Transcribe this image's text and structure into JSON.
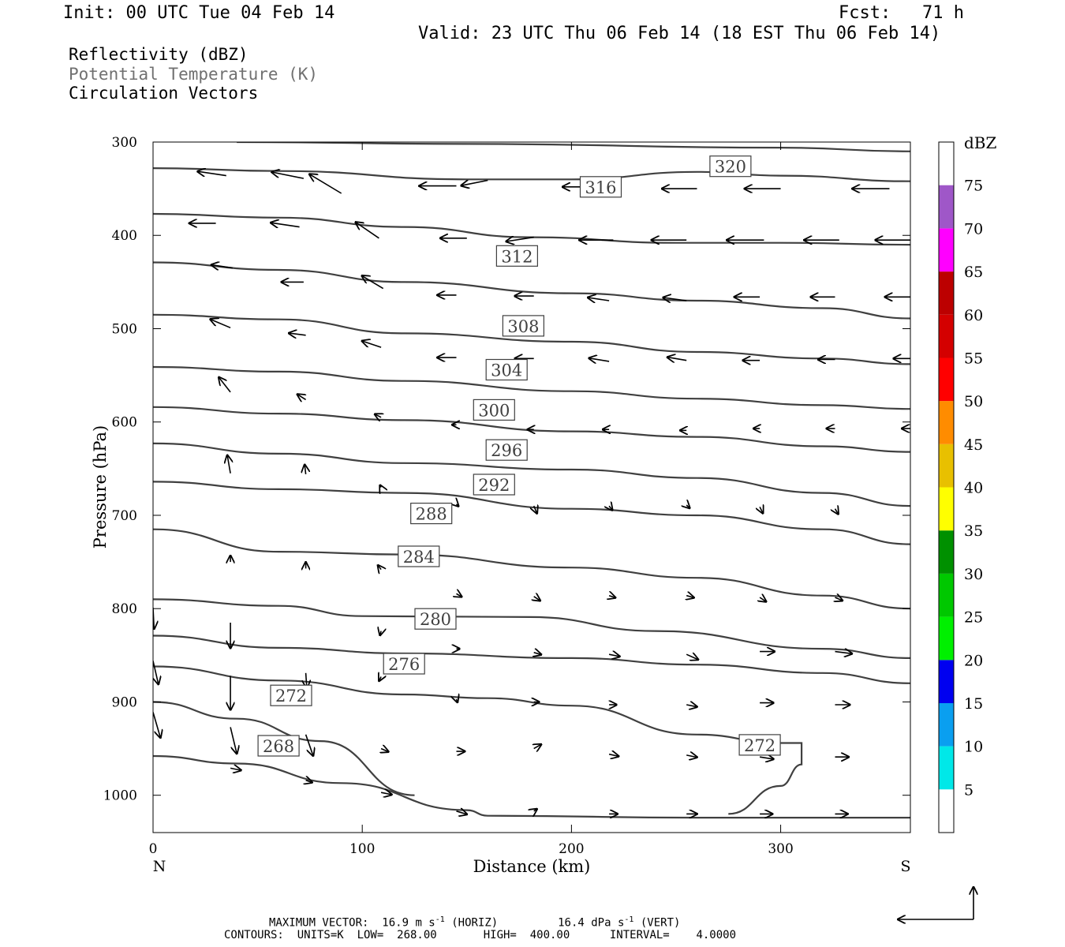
{
  "header": {
    "init": "Init: 00 UTC Tue 04 Feb 14",
    "fcst": "Fcst:   71 h",
    "valid": "Valid: 23 UTC Thu 06 Feb 14 (18 EST Thu 06 Feb 14)"
  },
  "fields": {
    "field1": "Reflectivity (dBZ)",
    "field2": "Potential Temperature (K)",
    "field3": "Circulation Vectors"
  },
  "footer": {
    "max_vector_label": "MAXIMUM VECTOR:",
    "max_horiz": "16.9 m s",
    "horiz_tag": "(HORIZ)",
    "max_vert": "16.4 dPa s",
    "vert_tag": "(VERT)",
    "exp": "-1",
    "contours_line": "CONTOURS:  UNITS=K  LOW=  268.00       HIGH=  400.00      INTERVAL=    4.0000"
  },
  "colors": {
    "contour": "#404040",
    "label_box": "#404040",
    "vector": "#000000",
    "colorbar": [
      "#00e8e8",
      "#0a9ff0",
      "#0000f0",
      "#00f000",
      "#00c800",
      "#009000",
      "#ffff00",
      "#e8c000",
      "#ff8c00",
      "#ff0000",
      "#d40000",
      "#bc0000",
      "#ff00ff",
      "#9f57c8"
    ]
  },
  "chart_data": {
    "type": "cross-section",
    "xlabel": "Distance (km)",
    "ylabel": "Pressure (hPa)",
    "xlim": [
      0,
      362
    ],
    "ylim": [
      1040,
      300
    ],
    "x_ticks": [
      0,
      100,
      200,
      300
    ],
    "y_ticks": [
      300,
      400,
      500,
      600,
      700,
      800,
      900,
      1000
    ],
    "x_end_labels": {
      "left": "N",
      "right": "S"
    },
    "colorbar": {
      "title": "dBZ",
      "levels": [
        5,
        10,
        15,
        20,
        25,
        30,
        35,
        40,
        45,
        50,
        55,
        60,
        65,
        70,
        75
      ]
    },
    "contour_labels": [
      {
        "value": "320",
        "x": 276,
        "p": 326
      },
      {
        "value": "316",
        "x": 214,
        "p": 348
      },
      {
        "value": "312",
        "x": 174,
        "p": 422
      },
      {
        "value": "308",
        "x": 177,
        "p": 497
      },
      {
        "value": "304",
        "x": 169,
        "p": 544
      },
      {
        "value": "300",
        "x": 163,
        "p": 587
      },
      {
        "value": "296",
        "x": 169,
        "p": 630
      },
      {
        "value": "292",
        "x": 163,
        "p": 667
      },
      {
        "value": "288",
        "x": 133,
        "p": 698
      },
      {
        "value": "284",
        "x": 127,
        "p": 744
      },
      {
        "value": "280",
        "x": 135,
        "p": 811
      },
      {
        "value": "276",
        "x": 120,
        "p": 859
      },
      {
        "value": "272",
        "x": 66,
        "p": 893
      },
      {
        "value": "268",
        "x": 60,
        "p": 947
      },
      {
        "value": "272",
        "x": 290,
        "p": 946
      }
    ],
    "isentropes": [
      {
        "value": 324,
        "points": [
          [
            40,
            300
          ],
          [
            150,
            302
          ],
          [
            300,
            306
          ],
          [
            362,
            310
          ]
        ]
      },
      {
        "value": 320,
        "points": [
          [
            0,
            328
          ],
          [
            60,
            331
          ],
          [
            150,
            340
          ],
          [
            200,
            340
          ],
          [
            260,
            332
          ],
          [
            300,
            336
          ],
          [
            362,
            342
          ]
        ]
      },
      {
        "value": 316,
        "points": [
          [
            0,
            377
          ],
          [
            60,
            381
          ],
          [
            120,
            391
          ],
          [
            180,
            402
          ],
          [
            250,
            408
          ],
          [
            300,
            408
          ],
          [
            362,
            410
          ]
        ]
      },
      {
        "value": 312,
        "points": [
          [
            0,
            429
          ],
          [
            60,
            437
          ],
          [
            120,
            450
          ],
          [
            200,
            462
          ],
          [
            260,
            470
          ],
          [
            320,
            478
          ],
          [
            362,
            489
          ]
        ]
      },
      {
        "value": 308,
        "points": [
          [
            0,
            485
          ],
          [
            60,
            490
          ],
          [
            120,
            505
          ],
          [
            200,
            514
          ],
          [
            260,
            525
          ],
          [
            320,
            532
          ],
          [
            362,
            538
          ]
        ]
      },
      {
        "value": 304,
        "points": [
          [
            0,
            541
          ],
          [
            60,
            546
          ],
          [
            120,
            556
          ],
          [
            200,
            567
          ],
          [
            260,
            575
          ],
          [
            320,
            582
          ],
          [
            362,
            586
          ]
        ]
      },
      {
        "value": 300,
        "points": [
          [
            0,
            584
          ],
          [
            60,
            591
          ],
          [
            120,
            598
          ],
          [
            200,
            610
          ],
          [
            260,
            616
          ],
          [
            320,
            626
          ],
          [
            362,
            632
          ]
        ]
      },
      {
        "value": 296,
        "points": [
          [
            0,
            623
          ],
          [
            60,
            634
          ],
          [
            120,
            644
          ],
          [
            200,
            651
          ],
          [
            260,
            660
          ],
          [
            320,
            676
          ],
          [
            362,
            690
          ]
        ]
      },
      {
        "value": 292,
        "points": [
          [
            0,
            664
          ],
          [
            60,
            672
          ],
          [
            120,
            676
          ],
          [
            200,
            693
          ],
          [
            260,
            700
          ],
          [
            320,
            715
          ],
          [
            362,
            731
          ]
        ]
      },
      {
        "value": 288,
        "points": [
          [
            0,
            715
          ],
          [
            60,
            739
          ],
          [
            120,
            742
          ],
          [
            200,
            756
          ],
          [
            260,
            767
          ],
          [
            320,
            786
          ],
          [
            362,
            800
          ]
        ]
      },
      {
        "value": 284,
        "points": [
          [
            0,
            790
          ],
          [
            60,
            797
          ],
          [
            100,
            808
          ],
          [
            180,
            809
          ],
          [
            240,
            824
          ],
          [
            320,
            843
          ],
          [
            362,
            853
          ]
        ]
      },
      {
        "value": 280,
        "points": [
          [
            0,
            829
          ],
          [
            60,
            842
          ],
          [
            120,
            848
          ],
          [
            200,
            853
          ],
          [
            260,
            860
          ],
          [
            320,
            869
          ],
          [
            362,
            880
          ]
        ]
      },
      {
        "value": 276,
        "points": [
          [
            0,
            862
          ],
          [
            60,
            877
          ],
          [
            120,
            892
          ],
          [
            160,
            896
          ],
          [
            200,
            904
          ],
          [
            260,
            935
          ],
          [
            300,
            944
          ],
          [
            310,
            944
          ],
          [
            310,
            967
          ],
          [
            300,
            990
          ],
          [
            275,
            1020
          ]
        ]
      },
      {
        "value": 272,
        "points": [
          [
            0,
            900
          ],
          [
            40,
            918
          ],
          [
            80,
            942
          ],
          [
            125,
            1000
          ]
        ]
      },
      {
        "value": 268,
        "points": [
          [
            0,
            958
          ],
          [
            40,
            966
          ],
          [
            90,
            987
          ],
          [
            150,
            1016
          ],
          [
            160,
            1022
          ],
          [
            260,
            1024
          ],
          [
            362,
            1024
          ]
        ]
      }
    ],
    "vectors": [
      {
        "x": 35,
        "p": 336,
        "u": -27,
        "w": 4
      },
      {
        "x": 72,
        "p": 339,
        "u": -30,
        "w": 6
      },
      {
        "x": 90,
        "p": 355,
        "u": -30,
        "w": 18
      },
      {
        "x": 145,
        "p": 347,
        "u": -35,
        "w": 0
      },
      {
        "x": 160,
        "p": 341,
        "u": -25,
        "w": -5
      },
      {
        "x": 215,
        "p": 348,
        "u": -38,
        "w": 0
      },
      {
        "x": 260,
        "p": 350,
        "u": -33,
        "w": 0
      },
      {
        "x": 300,
        "p": 350,
        "u": -34,
        "w": 0
      },
      {
        "x": 352,
        "p": 350,
        "u": -35,
        "w": 0
      },
      {
        "x": 30,
        "p": 387,
        "u": -25,
        "w": 0
      },
      {
        "x": 70,
        "p": 391,
        "u": -27,
        "w": 4
      },
      {
        "x": 108,
        "p": 403,
        "u": -22,
        "w": 15
      },
      {
        "x": 150,
        "p": 403,
        "u": -25,
        "w": 0
      },
      {
        "x": 182,
        "p": 402,
        "u": -26,
        "w": -4
      },
      {
        "x": 220,
        "p": 405,
        "u": -32,
        "w": 0
      },
      {
        "x": 255,
        "p": 405,
        "u": -33,
        "w": 0
      },
      {
        "x": 292,
        "p": 405,
        "u": -35,
        "w": 0
      },
      {
        "x": 328,
        "p": 405,
        "u": -33,
        "w": 0
      },
      {
        "x": 362,
        "p": 405,
        "u": -33,
        "w": 0
      },
      {
        "x": 38,
        "p": 435,
        "u": -20,
        "w": 3
      },
      {
        "x": 72,
        "p": 450,
        "u": -21,
        "w": 0
      },
      {
        "x": 110,
        "p": 457,
        "u": -20,
        "w": 12
      },
      {
        "x": 145,
        "p": 464,
        "u": -18,
        "w": 0
      },
      {
        "x": 182,
        "p": 465,
        "u": -18,
        "w": 0
      },
      {
        "x": 218,
        "p": 470,
        "u": -20,
        "w": 3
      },
      {
        "x": 255,
        "p": 470,
        "u": -22,
        "w": 3
      },
      {
        "x": 290,
        "p": 466,
        "u": -24,
        "w": 0
      },
      {
        "x": 326,
        "p": 466,
        "u": -23,
        "w": 0
      },
      {
        "x": 362,
        "p": 466,
        "u": -24,
        "w": 0
      },
      {
        "x": 37,
        "p": 499,
        "u": -19,
        "w": 8
      },
      {
        "x": 73,
        "p": 507,
        "u": -16,
        "w": 2
      },
      {
        "x": 109,
        "p": 520,
        "u": -18,
        "w": 6
      },
      {
        "x": 145,
        "p": 531,
        "u": -18,
        "w": 0
      },
      {
        "x": 182,
        "p": 532,
        "u": -18,
        "w": 0
      },
      {
        "x": 218,
        "p": 535,
        "u": -19,
        "w": 3
      },
      {
        "x": 255,
        "p": 534,
        "u": -18,
        "w": 3
      },
      {
        "x": 290,
        "p": 534,
        "u": -16,
        "w": 0
      },
      {
        "x": 326,
        "p": 533,
        "u": -16,
        "w": 0
      },
      {
        "x": 362,
        "p": 532,
        "u": -16,
        "w": 0
      },
      {
        "x": 37,
        "p": 568,
        "u": -11,
        "w": 14
      },
      {
        "x": 73,
        "p": 576,
        "u": -8,
        "w": 5
      },
      {
        "x": 109,
        "p": 595,
        "u": -6,
        "w": 3
      },
      {
        "x": 145,
        "p": 603,
        "u": -4,
        "w": 0
      },
      {
        "x": 182,
        "p": 608,
        "u": -6,
        "w": 0
      },
      {
        "x": 218,
        "p": 608,
        "u": -6,
        "w": 0
      },
      {
        "x": 255,
        "p": 609,
        "u": -6,
        "w": 0
      },
      {
        "x": 290,
        "p": 607,
        "u": -6,
        "w": 0
      },
      {
        "x": 326,
        "p": 607,
        "u": -8,
        "w": 0
      },
      {
        "x": 362,
        "p": 607,
        "u": -8,
        "w": 0
      },
      {
        "x": 37,
        "p": 655,
        "u": -3,
        "w": 17
      },
      {
        "x": 73,
        "p": 656,
        "u": -1,
        "w": 9
      },
      {
        "x": 109,
        "p": 670,
        "u": -1,
        "w": 2
      },
      {
        "x": 145,
        "p": 688,
        "u": 2,
        "w": -2
      },
      {
        "x": 182,
        "p": 690,
        "u": 3,
        "w": -7
      },
      {
        "x": 218,
        "p": 690,
        "u": 3,
        "w": -4
      },
      {
        "x": 255,
        "p": 689,
        "u": 3,
        "w": -3
      },
      {
        "x": 290,
        "p": 691,
        "u": 3,
        "w": -6
      },
      {
        "x": 326,
        "p": 693,
        "u": 3,
        "w": -5
      },
      {
        "x": 37,
        "p": 750,
        "u": 0,
        "w": 6
      },
      {
        "x": 73,
        "p": 757,
        "u": 0,
        "w": 6
      },
      {
        "x": 109,
        "p": 758,
        "u": -3,
        "w": 4
      },
      {
        "x": 145,
        "p": 784,
        "u": 5,
        "w": -3
      },
      {
        "x": 182,
        "p": 787,
        "u": 6,
        "w": -4
      },
      {
        "x": 218,
        "p": 786,
        "u": 6,
        "w": -2
      },
      {
        "x": 255,
        "p": 786,
        "u": 7,
        "w": -2
      },
      {
        "x": 290,
        "p": 788,
        "u": 6,
        "w": -4
      },
      {
        "x": 326,
        "p": 788,
        "u": 7,
        "w": -3
      },
      {
        "x": 0,
        "p": 799,
        "u": 1,
        "w": -20
      },
      {
        "x": 37,
        "p": 815,
        "u": 0,
        "w": -24
      },
      {
        "x": 109,
        "p": 824,
        "u": -1,
        "w": -4
      },
      {
        "x": 145,
        "p": 843,
        "u": 3,
        "w": 0
      },
      {
        "x": 182,
        "p": 847,
        "u": 7,
        "w": -2
      },
      {
        "x": 218,
        "p": 849,
        "u": 10,
        "w": -2
      },
      {
        "x": 255,
        "p": 849,
        "u": 11,
        "w": -5
      },
      {
        "x": 290,
        "p": 846,
        "u": 14,
        "w": 0
      },
      {
        "x": 326,
        "p": 846,
        "u": 16,
        "w": -2
      },
      {
        "x": 0,
        "p": 856,
        "u": 5,
        "w": -22
      },
      {
        "x": 37,
        "p": 872,
        "u": 0,
        "w": -32
      },
      {
        "x": 73,
        "p": 869,
        "u": 1,
        "w": -14
      },
      {
        "x": 109,
        "p": 873,
        "u": -2,
        "w": -4
      },
      {
        "x": 145,
        "p": 897,
        "u": 1,
        "w": -3
      },
      {
        "x": 182,
        "p": 900,
        "u": 5,
        "w": 0
      },
      {
        "x": 218,
        "p": 903,
        "u": 7,
        "w": 0
      },
      {
        "x": 255,
        "p": 903,
        "u": 10,
        "w": -2
      },
      {
        "x": 290,
        "p": 901,
        "u": 13,
        "w": 0
      },
      {
        "x": 326,
        "p": 903,
        "u": 14,
        "w": 0
      },
      {
        "x": 0,
        "p": 911,
        "u": 7,
        "w": -24
      },
      {
        "x": 37,
        "p": 927,
        "u": 6,
        "w": -25
      },
      {
        "x": 73,
        "p": 935,
        "u": 7,
        "w": -20
      },
      {
        "x": 109,
        "p": 950,
        "u": 7,
        "w": -3
      },
      {
        "x": 145,
        "p": 953,
        "u": 8,
        "w": 0
      },
      {
        "x": 182,
        "p": 950,
        "u": 7,
        "w": 4
      },
      {
        "x": 218,
        "p": 956,
        "u": 9,
        "w": -2
      },
      {
        "x": 255,
        "p": 957,
        "u": 10,
        "w": -2
      },
      {
        "x": 290,
        "p": 959,
        "u": 13,
        "w": -2
      },
      {
        "x": 326,
        "p": 959,
        "u": 13,
        "w": 0
      },
      {
        "x": 37,
        "p": 971,
        "u": 10,
        "w": -2
      },
      {
        "x": 73,
        "p": 984,
        "u": 6,
        "w": -2
      },
      {
        "x": 109,
        "p": 997,
        "u": 10,
        "w": -2
      },
      {
        "x": 145,
        "p": 1017,
        "u": 10,
        "w": -3
      },
      {
        "x": 182,
        "p": 1017,
        "u": 3,
        "w": 2
      },
      {
        "x": 218,
        "p": 1020,
        "u": 8,
        "w": 0
      },
      {
        "x": 255,
        "p": 1020,
        "u": 10,
        "w": 0
      },
      {
        "x": 290,
        "p": 1020,
        "u": 12,
        "w": 0
      },
      {
        "x": 326,
        "p": 1020,
        "u": 12,
        "w": 0
      }
    ]
  },
  "legend_vector": {
    "horiz_arrow": "reference-horizontal",
    "vert_arrow": "reference-vertical"
  }
}
